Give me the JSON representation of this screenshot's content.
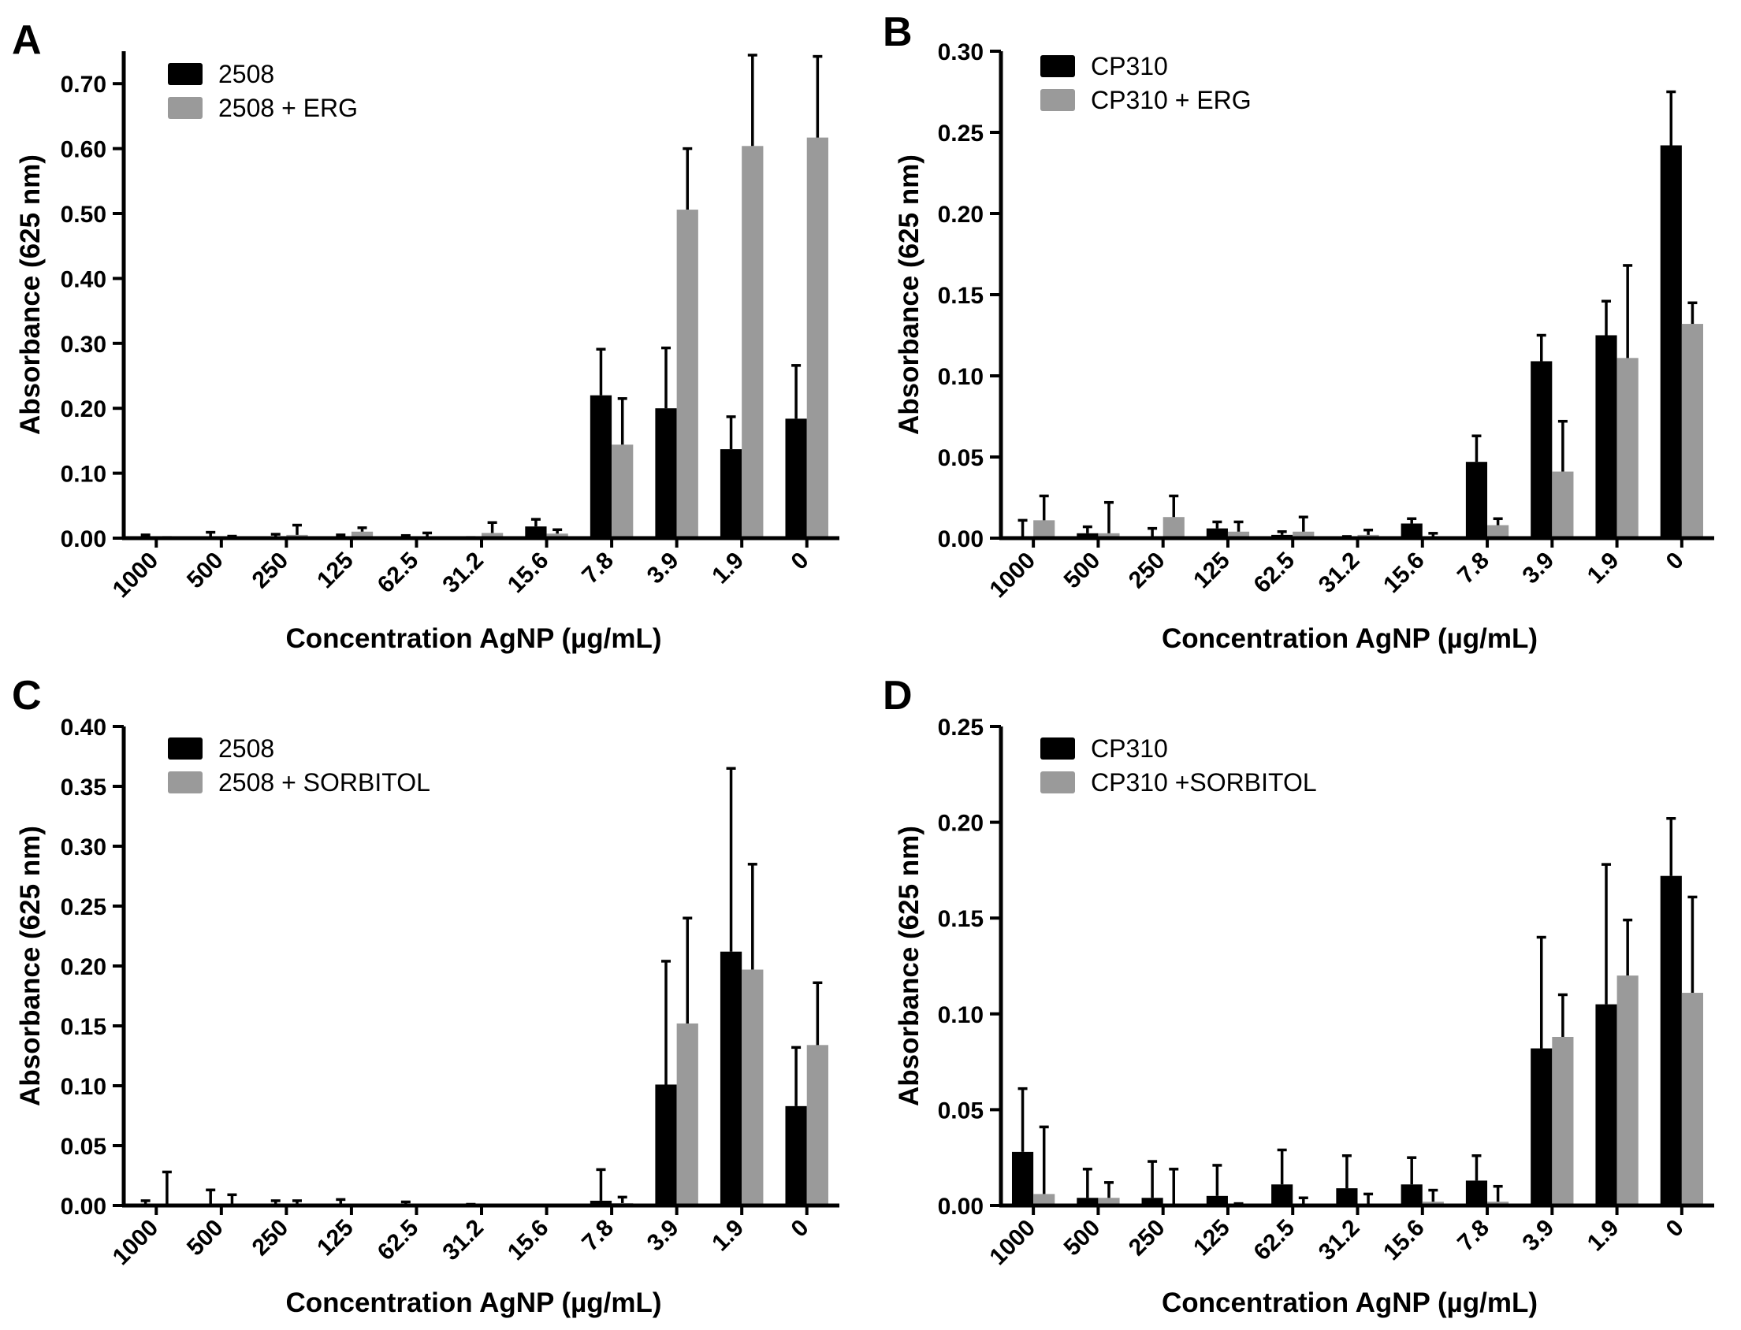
{
  "colors": {
    "primary": "#000000",
    "secondary": "#9a9a9a",
    "axis": "#000000"
  },
  "chart_data": [
    {
      "panel": "A",
      "type": "bar",
      "categories": [
        "1000",
        "500",
        "250",
        "125",
        "62.5",
        "31.2",
        "15.6",
        "7.8",
        "3.9",
        "1.9",
        "0"
      ],
      "series": [
        {
          "name": "2508",
          "color": "#000000",
          "values": [
            0.001,
            0.002,
            0.002,
            0.002,
            0.001,
            0.0,
            0.018,
            0.22,
            0.2,
            0.137,
            0.184
          ],
          "errors": [
            0.004,
            0.007,
            0.004,
            0.003,
            0.003,
            0.001,
            0.011,
            0.071,
            0.093,
            0.05,
            0.082
          ]
        },
        {
          "name": "2508 + ERG",
          "color": "#9a9a9a",
          "values": [
            0.0,
            0.001,
            0.005,
            0.01,
            0.002,
            0.008,
            0.007,
            0.144,
            0.506,
            0.604,
            0.617
          ],
          "errors": [
            0.001,
            0.002,
            0.015,
            0.006,
            0.006,
            0.016,
            0.006,
            0.071,
            0.094,
            0.14,
            0.125
          ]
        }
      ],
      "xlabel": "Concentration AgNP (µg/mL)",
      "ylabel": "Absorbance (625 nm)",
      "ylim": [
        0,
        0.75
      ],
      "yticks": [
        "0.00",
        "0.10",
        "0.20",
        "0.30",
        "0.40",
        "0.50",
        "0.60",
        "0.70"
      ],
      "legend": "top-left"
    },
    {
      "panel": "B",
      "type": "bar",
      "categories": [
        "1000",
        "500",
        "250",
        "125",
        "62.5",
        "31.2",
        "15.6",
        "7.8",
        "3.9",
        "1.9",
        "0"
      ],
      "series": [
        {
          "name": "CP310",
          "color": "#000000",
          "values": [
            0.0,
            0.003,
            0.001,
            0.006,
            0.002,
            0.001,
            0.009,
            0.047,
            0.109,
            0.125,
            0.242
          ],
          "errors": [
            0.011,
            0.004,
            0.005,
            0.004,
            0.002,
            0.0,
            0.003,
            0.016,
            0.016,
            0.021,
            0.033
          ]
        },
        {
          "name": "CP310 + ERG",
          "color": "#9a9a9a",
          "values": [
            0.011,
            0.003,
            0.013,
            0.004,
            0.004,
            0.002,
            0.001,
            0.008,
            0.041,
            0.111,
            0.132
          ],
          "errors": [
            0.015,
            0.019,
            0.013,
            0.006,
            0.009,
            0.003,
            0.002,
            0.004,
            0.031,
            0.057,
            0.013
          ]
        }
      ],
      "xlabel": "Concentration AgNP (µg/mL)",
      "ylabel": "Absorbance (625 nm)",
      "ylim": [
        0,
        0.3
      ],
      "yticks": [
        "0.00",
        "0.05",
        "0.10",
        "0.15",
        "0.20",
        "0.25",
        "0.30"
      ],
      "legend": "top-left"
    },
    {
      "panel": "C",
      "type": "bar",
      "categories": [
        "1000",
        "500",
        "250",
        "125",
        "62.5",
        "31.2",
        "15.6",
        "7.8",
        "3.9",
        "1.9",
        "0"
      ],
      "series": [
        {
          "name": "2508",
          "color": "#000000",
          "values": [
            0.0,
            0.0,
            0.0,
            0.0,
            0.0,
            0.0,
            0.0,
            0.004,
            0.101,
            0.212,
            0.083
          ],
          "errors": [
            0.004,
            0.013,
            0.004,
            0.005,
            0.003,
            0.001,
            0.0,
            0.026,
            0.103,
            0.153,
            0.049
          ]
        },
        {
          "name": "2508 + SORBITOL",
          "color": "#9a9a9a",
          "values": [
            0.0,
            0.0,
            0.0,
            0.0,
            0.0,
            0.0,
            0.0,
            0.002,
            0.152,
            0.197,
            0.134
          ],
          "errors": [
            0.028,
            0.009,
            0.004,
            0.0,
            0.0,
            0.0,
            0.0,
            0.005,
            0.088,
            0.088,
            0.052
          ]
        }
      ],
      "xlabel": "Concentration AgNP (µg/mL)",
      "ylabel": "Absorbance (625 nm)",
      "ylim": [
        0,
        0.4
      ],
      "yticks": [
        "0.00",
        "0.05",
        "0.10",
        "0.15",
        "0.20",
        "0.25",
        "0.30",
        "0.35",
        "0.40"
      ],
      "legend": "top-left"
    },
    {
      "panel": "D",
      "type": "bar",
      "categories": [
        "1000",
        "500",
        "250",
        "125",
        "62.5",
        "31.2",
        "15.6",
        "7.8",
        "3.9",
        "1.9",
        "0"
      ],
      "series": [
        {
          "name": "CP310",
          "color": "#000000",
          "values": [
            0.028,
            0.004,
            0.004,
            0.005,
            0.011,
            0.009,
            0.011,
            0.013,
            0.082,
            0.105,
            0.172
          ],
          "errors": [
            0.033,
            0.015,
            0.019,
            0.016,
            0.018,
            0.017,
            0.014,
            0.013,
            0.058,
            0.073,
            0.03
          ]
        },
        {
          "name": "CP310 +SORBITOL",
          "color": "#9a9a9a",
          "values": [
            0.006,
            0.004,
            0.001,
            0.001,
            0.001,
            0.001,
            0.002,
            0.002,
            0.088,
            0.12,
            0.111
          ],
          "errors": [
            0.035,
            0.008,
            0.018,
            0.0,
            0.003,
            0.005,
            0.006,
            0.008,
            0.022,
            0.029,
            0.05
          ]
        }
      ],
      "xlabel": "Concentration AgNP (µg/mL)",
      "ylabel": "Absorbance (625 nm)",
      "ylim": [
        0,
        0.25
      ],
      "yticks": [
        "0.00",
        "0.05",
        "0.10",
        "0.15",
        "0.20",
        "0.25"
      ],
      "legend": "top-left"
    }
  ]
}
